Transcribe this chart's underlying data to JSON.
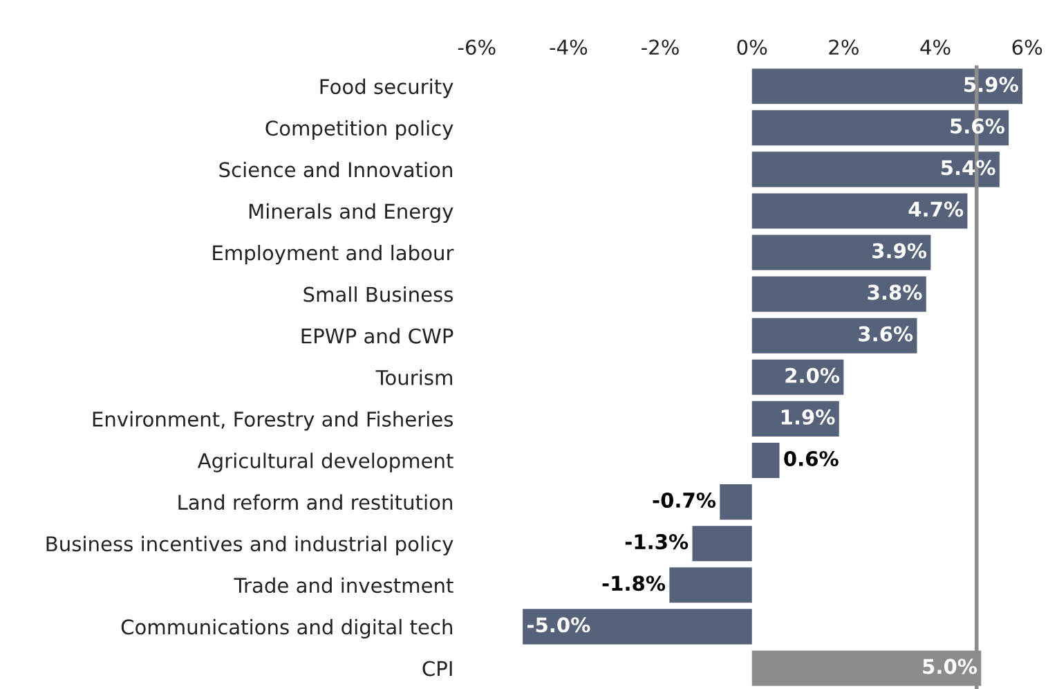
{
  "chart_data": {
    "type": "bar",
    "orientation": "horizontal",
    "categories": [
      "Food security",
      "Competition policy",
      "Science and Innovation",
      "Minerals and Energy",
      "Employment and labour",
      "Small Business",
      "EPWP and CWP",
      "Tourism",
      "Environment, Forestry and Fisheries",
      "Agricultural development",
      "Land reform and restitution",
      "Business incentives and industrial policy",
      "Trade and investment",
      "Communications and digital tech",
      "CPI"
    ],
    "values": [
      5.9,
      5.6,
      5.4,
      4.7,
      3.9,
      3.8,
      3.6,
      2.0,
      1.9,
      0.6,
      -0.7,
      -1.3,
      -1.8,
      -5.0,
      5.0
    ],
    "colors": [
      "#56627a",
      "#56627a",
      "#56627a",
      "#56627a",
      "#56627a",
      "#56627a",
      "#56627a",
      "#56627a",
      "#56627a",
      "#56627a",
      "#56627a",
      "#56627a",
      "#56627a",
      "#56627a",
      "#8c8c8c"
    ],
    "value_labels": [
      "5.9%",
      "5.6%",
      "5.4%",
      "4.7%",
      "3.9%",
      "3.8%",
      "3.6%",
      "2.0%",
      "1.9%",
      "0.6%",
      "-0.7%",
      "-1.3%",
      "-1.8%",
      "-5.0%",
      "5.0%"
    ],
    "xlim": [
      -6,
      6
    ],
    "xticks": [
      {
        "value": -6,
        "label": "-6%"
      },
      {
        "value": -4,
        "label": "-4%"
      },
      {
        "value": -2,
        "label": "-2%"
      },
      {
        "value": 0,
        "label": "0%"
      },
      {
        "value": 2,
        "label": "2%"
      },
      {
        "value": 4,
        "label": "4%"
      },
      {
        "value": 6,
        "label": "6%"
      }
    ],
    "ref_lines": [
      {
        "axis": "x",
        "value": 4.9,
        "color": "#8c8c8c"
      }
    ],
    "grid": false,
    "legend": false
  }
}
